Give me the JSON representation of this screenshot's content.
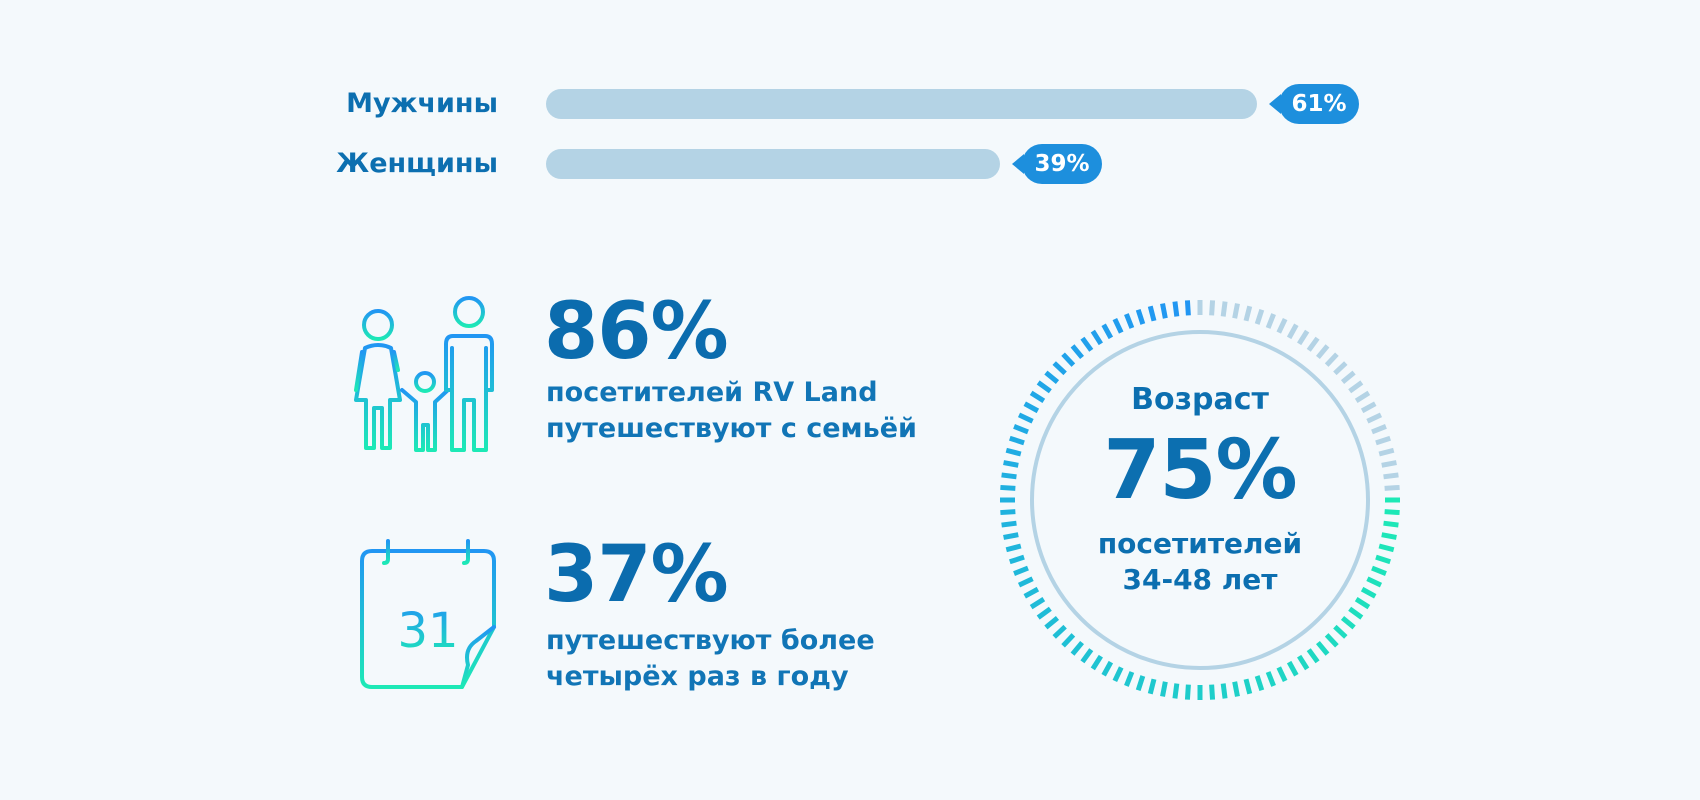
{
  "gender": {
    "rows": [
      {
        "label": "Мужчины",
        "percent": 61,
        "badge": "61%"
      },
      {
        "label": "Женщины",
        "percent": 39,
        "badge": "39%"
      }
    ]
  },
  "family": {
    "value": "86%",
    "caption_line1": "посетителей RV Land",
    "caption_line2": "путешествуют с семьёй",
    "icon": "family-icon"
  },
  "frequency": {
    "value": "37%",
    "caption_line1": "путешествуют более",
    "caption_line2": "четырёх раз в году",
    "icon": "calendar-icon",
    "calendar_day": "31"
  },
  "age": {
    "title": "Возраст",
    "value": "75%",
    "percent": 75,
    "caption_line1": "посетителей",
    "caption_line2": "34-48 лет"
  },
  "colors": {
    "accent_dark": "#0c6fb0",
    "badge": "#1d8fdd",
    "track": "#b4d3e5",
    "gradient_start": "#2196f3",
    "gradient_end": "#1de9b6"
  },
  "chart_data": {
    "type": "bar",
    "categories": [
      "Мужчины",
      "Женщины"
    ],
    "values": [
      61,
      39
    ],
    "title": "",
    "xlabel": "",
    "ylabel": "",
    "ylim": [
      0,
      100
    ]
  }
}
